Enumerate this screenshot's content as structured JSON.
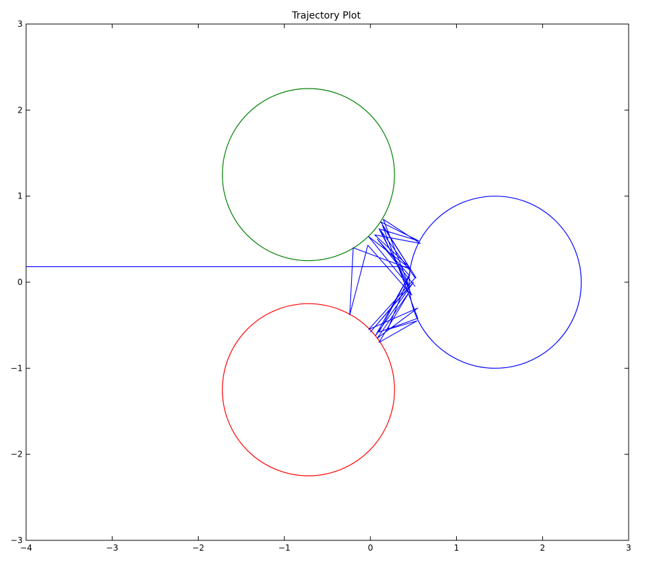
{
  "chart_data": {
    "type": "line",
    "title": "Trajectory Plot",
    "xlabel": "",
    "ylabel": "",
    "xlim": [
      -4,
      3
    ],
    "ylim": [
      -3,
      3
    ],
    "grid": false,
    "legend": "none",
    "x_ticks": [
      -4,
      -3,
      -2,
      -1,
      0,
      1,
      2,
      3
    ],
    "y_ticks": [
      -3,
      -2,
      -1,
      0,
      1,
      2,
      3
    ],
    "x_tick_labels": [
      "−4",
      "−3",
      "−2",
      "−1",
      "0",
      "1",
      "2",
      "3"
    ],
    "y_tick_labels": [
      "−3",
      "−2",
      "−1",
      "0",
      "1",
      "2",
      "3"
    ],
    "circles": [
      {
        "cx": -0.72,
        "cy": 1.25,
        "r": 1.0,
        "color": "#008000"
      },
      {
        "cx": -0.72,
        "cy": -1.25,
        "r": 1.0,
        "color": "#ff0000"
      },
      {
        "cx": 1.45,
        "cy": 0.0,
        "r": 1.0,
        "color": "#0000ff"
      }
    ],
    "trajectory": {
      "color": "#0000ff",
      "x": [
        -4.0,
        0.45,
        0.05,
        0.58,
        0.15,
        0.45,
        -0.02,
        0.47,
        -0.2,
        -0.24,
        -0.03,
        0.48,
        0.12,
        0.52,
        -0.02,
        0.55,
        0.08,
        0.46,
        0.1,
        0.54,
        0.2,
        0.46,
        0.06,
        0.5,
        0.0,
        0.45,
        0.1,
        0.56,
        0.12,
        0.53,
        0.14,
        0.55,
        0.1,
        0.45,
        0.08,
        0.52
      ],
      "y": [
        0.18,
        0.18,
        0.55,
        0.45,
        0.73,
        -0.05,
        0.53,
        0.15,
        0.4,
        -0.38,
        0.43,
        -0.15,
        0.6,
        0.05,
        -0.55,
        -0.3,
        -0.65,
        -0.1,
        -0.7,
        -0.45,
        -0.55,
        0.1,
        -0.62,
        0.0,
        -0.58,
        -0.05,
        0.62,
        0.48,
        0.7,
        0.05,
        0.66,
        -0.42,
        -0.58,
        0.08,
        0.5,
        -0.05
      ]
    }
  }
}
